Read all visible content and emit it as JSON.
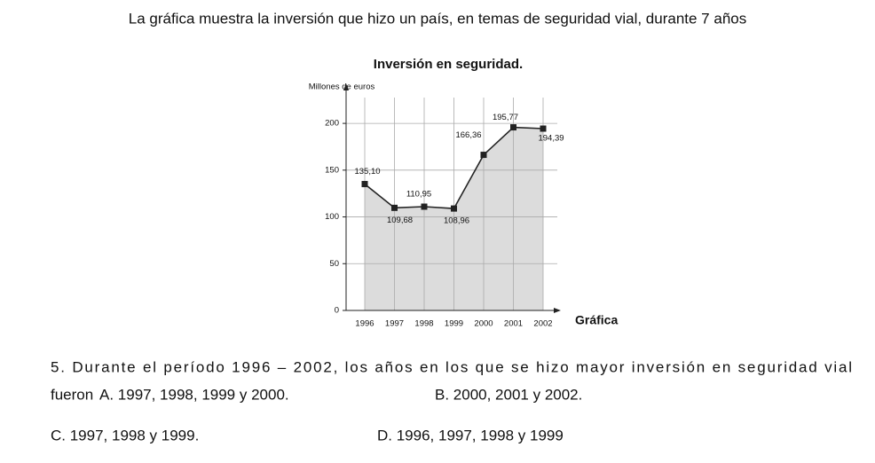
{
  "intro": "La gráfica muestra la inversión que hizo un país, en temas de seguridad vial, durante 7 años",
  "chart_data": {
    "type": "line",
    "title": "Inversión en seguridad.",
    "y_label": "Millones de euros",
    "caption": "Gráfica",
    "categories": [
      "1996",
      "1997",
      "1998",
      "1999",
      "2000",
      "2001",
      "2002"
    ],
    "values": [
      135.1,
      109.68,
      110.95,
      108.96,
      166.36,
      195.77,
      194.39
    ],
    "value_labels": [
      "135,10",
      "109,68",
      "110,95",
      "108,96",
      "166,36",
      "195,77",
      "194,39"
    ],
    "color": "#222222",
    "fill": "#dcdcdc",
    "ylim": [
      0,
      220
    ],
    "yticks": [
      0,
      50,
      100,
      150,
      200
    ],
    "grid": true
  },
  "question": {
    "stem": "5. Durante el período 1996 – 2002, los años en los que se hizo mayor inversión en seguridad vial",
    "lead": "fueron",
    "options": [
      "A. 1997, 1998, 1999 y 2000.",
      "B. 2000, 2001 y 2002.",
      "C. 1997, 1998 y 1999.",
      "D. 1996, 1997, 1998 y 1999"
    ]
  }
}
